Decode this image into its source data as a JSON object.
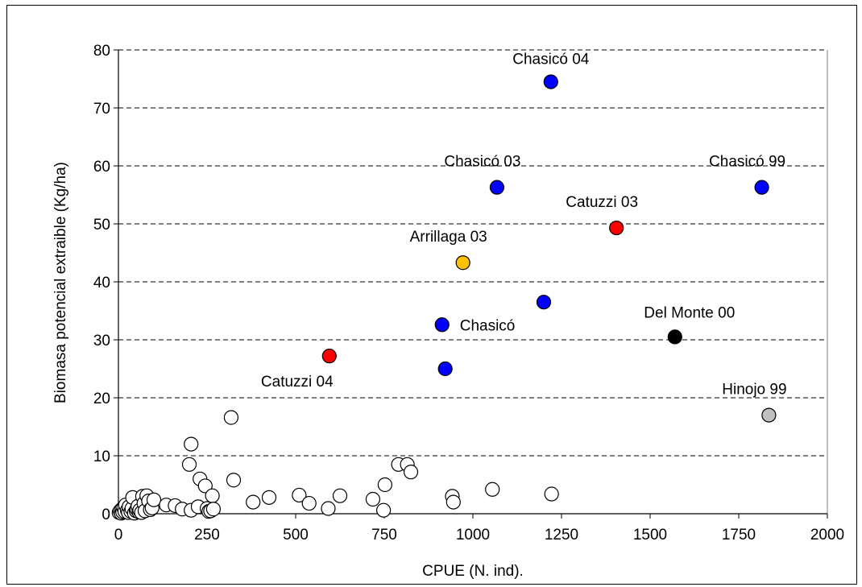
{
  "chart_data": {
    "type": "scatter",
    "xlabel": "CPUE (N. ind).",
    "ylabel": "Biomasa potencial extraible (Kg/ha)",
    "xlim": [
      0,
      2000
    ],
    "ylim": [
      0,
      80
    ],
    "xticks": [
      0,
      250,
      500,
      750,
      1000,
      1250,
      1500,
      1750,
      2000
    ],
    "yticks": [
      0,
      10,
      20,
      30,
      40,
      50,
      60,
      70,
      80
    ],
    "grid": "horizontal dashed",
    "colors": {
      "blue": "#0000ff",
      "red": "#ff0000",
      "yellow": "#ffc000",
      "black": "#000000",
      "gray": "#c0c0c0",
      "open": "#ffffff"
    },
    "labeled_points": [
      {
        "label": "Chasicó 04",
        "x": 1220,
        "y": 74.5,
        "color": "#0000ff",
        "label_pos": "above"
      },
      {
        "label": "Chasicó 03",
        "x": 1068,
        "y": 56.3,
        "color": "#0000ff",
        "label_pos": "above-left"
      },
      {
        "label": "Chasicó 99",
        "x": 1815,
        "y": 56.3,
        "color": "#0000ff",
        "label_pos": "above-left"
      },
      {
        "label": "Catuzzi 03",
        "x": 1405,
        "y": 49.3,
        "color": "#ff0000",
        "label_pos": "above-left"
      },
      {
        "label": "Arrillaga 03",
        "x": 972,
        "y": 43.3,
        "color": "#ffc000",
        "label_pos": "above-left"
      },
      {
        "label": "",
        "x": 1200,
        "y": 36.5,
        "color": "#0000ff",
        "label_pos": "none"
      },
      {
        "label": "Chasicó",
        "x": 913,
        "y": 32.6,
        "color": "#0000ff",
        "label_pos": "right"
      },
      {
        "label": "Del Monte 00",
        "x": 1570,
        "y": 30.5,
        "color": "#000000",
        "label_pos": "above-right"
      },
      {
        "label": "Catuzzi 04",
        "x": 595,
        "y": 27.2,
        "color": "#ff0000",
        "label_pos": "below-left"
      },
      {
        "label": "",
        "x": 922,
        "y": 25.0,
        "color": "#0000ff",
        "label_pos": "none"
      },
      {
        "label": "Hinojo 99",
        "x": 1835,
        "y": 17.0,
        "color": "#c0c0c0",
        "label_pos": "above-left"
      }
    ],
    "open_points": [
      [
        2,
        0.2
      ],
      [
        5,
        0.5
      ],
      [
        8,
        0.1
      ],
      [
        10,
        0.8
      ],
      [
        12,
        0.3
      ],
      [
        15,
        1.0
      ],
      [
        18,
        0.4
      ],
      [
        20,
        1.5
      ],
      [
        25,
        0.6
      ],
      [
        28,
        0.2
      ],
      [
        30,
        1.2
      ],
      [
        35,
        0.4
      ],
      [
        38,
        0.9
      ],
      [
        40,
        2.8
      ],
      [
        45,
        0.1
      ],
      [
        50,
        0.5
      ],
      [
        52,
        0.8
      ],
      [
        55,
        1.3
      ],
      [
        58,
        0.3
      ],
      [
        60,
        0.6
      ],
      [
        65,
        0.2
      ],
      [
        68,
        3.0
      ],
      [
        72,
        1.8
      ],
      [
        75,
        0.5
      ],
      [
        80,
        3.1
      ],
      [
        85,
        2.2
      ],
      [
        90,
        0.7
      ],
      [
        95,
        1.0
      ],
      [
        100,
        2.4
      ],
      [
        135,
        1.5
      ],
      [
        160,
        1.4
      ],
      [
        180,
        0.8
      ],
      [
        200,
        8.5
      ],
      [
        205,
        12.0
      ],
      [
        205,
        0.6
      ],
      [
        225,
        1.2
      ],
      [
        230,
        6.0
      ],
      [
        245,
        4.8
      ],
      [
        250,
        0.9
      ],
      [
        255,
        0.4
      ],
      [
        260,
        0.5
      ],
      [
        265,
        3.1
      ],
      [
        268,
        0.8
      ],
      [
        318,
        16.6
      ],
      [
        325,
        5.8
      ],
      [
        380,
        2.0
      ],
      [
        425,
        2.8
      ],
      [
        510,
        3.2
      ],
      [
        538,
        1.8
      ],
      [
        592,
        0.9
      ],
      [
        625,
        3.1
      ],
      [
        718,
        2.5
      ],
      [
        748,
        0.6
      ],
      [
        752,
        5.0
      ],
      [
        790,
        8.5
      ],
      [
        815,
        8.5
      ],
      [
        825,
        7.2
      ],
      [
        942,
        3.0
      ],
      [
        945,
        2.0
      ],
      [
        1055,
        4.2
      ],
      [
        1222,
        3.4
      ]
    ]
  }
}
